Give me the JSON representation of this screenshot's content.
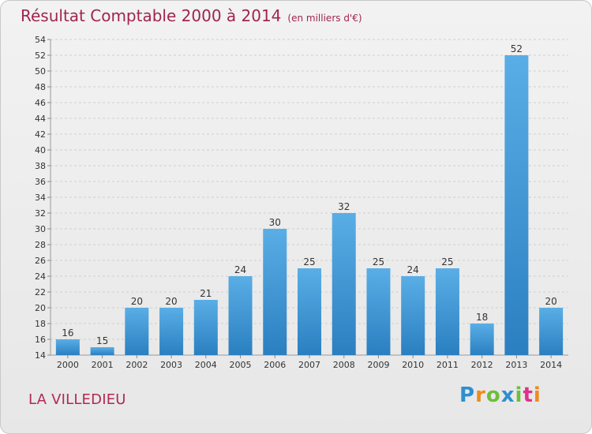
{
  "title": "Résultat Comptable 2000 à 2014",
  "subtitle": "(en milliers d'€)",
  "location": "LA VILLEDIEU",
  "logo": {
    "text": "Proxiti",
    "letters": [
      {
        "ch": "P",
        "color": "#2c8fd0"
      },
      {
        "ch": "r",
        "color": "#f08a1c"
      },
      {
        "ch": "o",
        "color": "#6cbf3b"
      },
      {
        "ch": "x",
        "color": "#2c8fd0"
      },
      {
        "ch": "i",
        "color": "#6cbf3b"
      },
      {
        "ch": "t",
        "color": "#e0328a"
      },
      {
        "ch": "i",
        "color": "#f08a1c"
      }
    ]
  },
  "colors": {
    "bar_top": "#5aaee6",
    "bar_bottom": "#2a7fc0",
    "title": "#a0254f",
    "location": "#b02a52"
  },
  "chart_data": {
    "type": "bar",
    "categories": [
      "2000",
      "2001",
      "2002",
      "2003",
      "2004",
      "2005",
      "2006",
      "2007",
      "2008",
      "2009",
      "2010",
      "2011",
      "2012",
      "2013",
      "2014"
    ],
    "values": [
      16,
      15,
      20,
      20,
      21,
      24,
      30,
      25,
      32,
      25,
      24,
      25,
      18,
      52,
      20
    ],
    "ylim": [
      14,
      54
    ],
    "yticks": [
      14,
      16,
      18,
      20,
      22,
      24,
      26,
      28,
      30,
      32,
      34,
      36,
      38,
      40,
      42,
      44,
      46,
      48,
      50,
      52,
      54
    ],
    "grid": true,
    "xlabel": "",
    "ylabel": ""
  }
}
